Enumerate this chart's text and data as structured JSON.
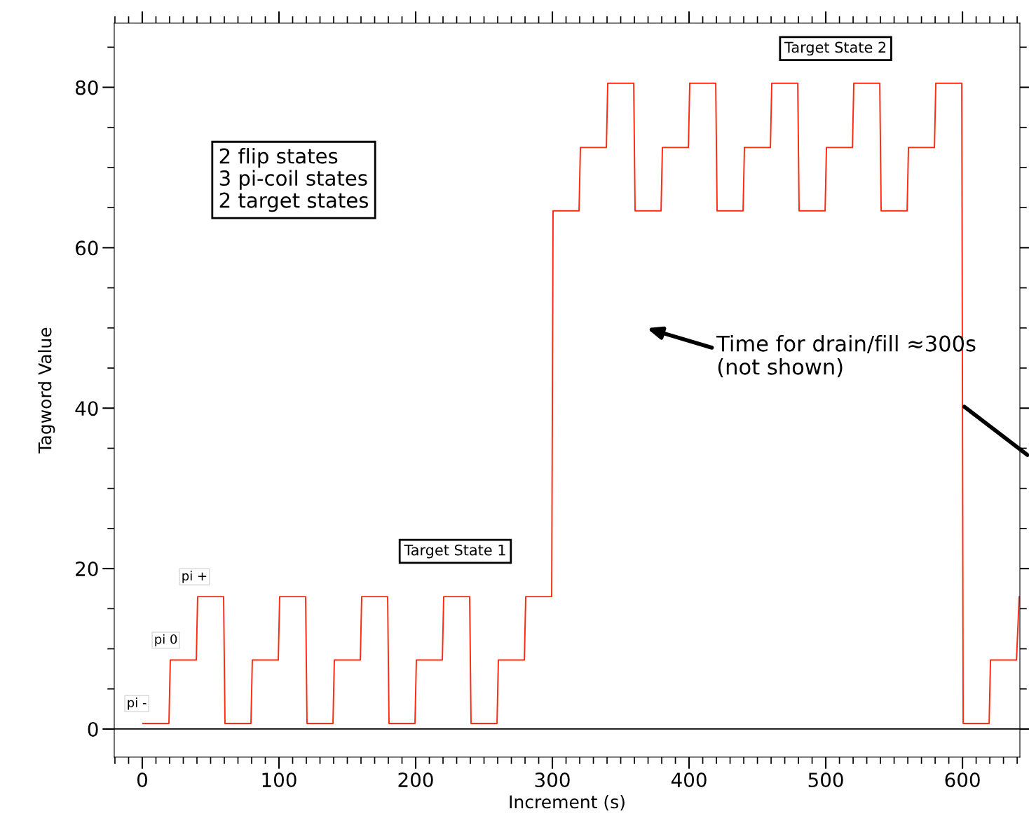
{
  "chart_data": {
    "type": "line",
    "xlabel": "Increment (s)",
    "ylabel": "Tagword Value",
    "x": [
      0.5,
      19.5,
      20.5,
      39.5,
      40.5,
      59.5,
      60.5,
      79.5,
      80.5,
      99.5,
      100.5,
      119.5,
      120.5,
      139.5,
      140.5,
      159.5,
      160.5,
      179.5,
      180.5,
      199.5,
      200.5,
      219.5,
      220.5,
      239.5,
      240.5,
      259.5,
      260.5,
      279.5,
      280.5,
      299.5,
      300.5,
      319.5,
      320.5,
      339.5,
      340.5,
      359.5,
      360.5,
      379.5,
      380.5,
      399.5,
      400.5,
      419.5,
      420.5,
      439.5,
      440.5,
      459.5,
      460.5,
      479.5,
      480.5,
      499.5,
      500.5,
      519.5,
      520.5,
      539.5,
      540.5,
      559.5,
      560.5,
      579.5,
      580.5,
      599.5,
      600.5,
      619.5,
      620.5,
      639.5,
      641.5
    ],
    "series": [
      {
        "color": "#ff2a10",
        "values": [
          0.7,
          0.7,
          8.6,
          8.6,
          16.5,
          16.5,
          0.7,
          0.7,
          8.6,
          8.6,
          16.5,
          16.5,
          0.7,
          0.7,
          8.6,
          8.6,
          16.5,
          16.5,
          0.7,
          0.7,
          8.6,
          8.6,
          16.5,
          16.5,
          0.7,
          0.7,
          8.6,
          8.6,
          16.5,
          16.5,
          64.6,
          64.6,
          72.5,
          72.5,
          80.5,
          80.5,
          64.6,
          64.6,
          72.5,
          72.5,
          80.5,
          80.5,
          64.6,
          64.6,
          72.5,
          72.5,
          80.5,
          80.5,
          64.6,
          64.6,
          72.5,
          72.5,
          80.5,
          80.5,
          64.6,
          64.6,
          72.5,
          72.5,
          80.5,
          80.5,
          0.7,
          0.7,
          8.6,
          8.6,
          16.5
        ]
      }
    ],
    "xlim": [
      -20.5,
      642
    ],
    "xticks": [
      0,
      100,
      200,
      300,
      400,
      500,
      600
    ],
    "ylim": [
      -3.5,
      88
    ],
    "yticks": [
      0,
      20,
      40,
      60,
      80
    ],
    "ref_lines": [
      {
        "axis": "y",
        "value": 0,
        "color": "#000000"
      }
    ],
    "grid": false,
    "legend": false,
    "marker": "none",
    "line_style": "solid",
    "annotations": [
      {
        "text": "pi -",
        "x": 0,
        "y": 0.7
      },
      {
        "text": "pi 0",
        "x": 20,
        "y": 8.6
      },
      {
        "text": "pi +",
        "x": 40,
        "y": 16.5
      },
      "Target State 1",
      "Target State 2",
      "2 flip states\n3 pi-coil states\n2 target states",
      "Time for drain/fill ≈300s\n(not shown)"
    ]
  }
}
